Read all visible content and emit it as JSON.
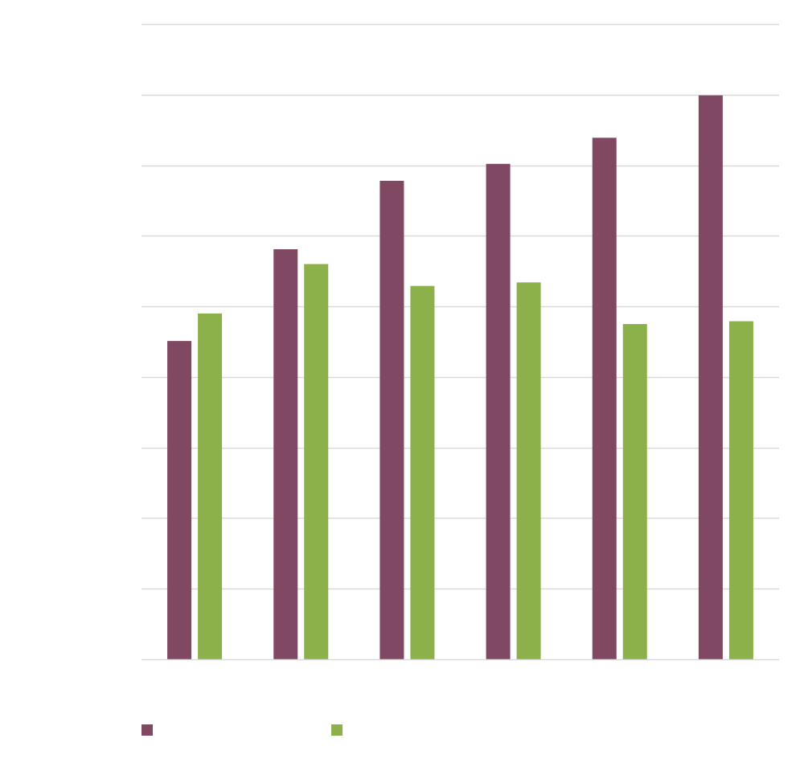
{
  "chart_data": {
    "type": "bar",
    "title": "",
    "xlabel": "",
    "ylabel": "",
    "categories": [
      "",
      "",
      "",
      "",
      "",
      ""
    ],
    "series": [
      {
        "color": "#804862",
        "values": [
          45.1,
          58.1,
          67.8,
          70.2,
          73.9,
          79.9
        ]
      },
      {
        "color": "#8db14a",
        "values": [
          49.0,
          56.0,
          52.9,
          53.4,
          47.5,
          47.9
        ]
      }
    ],
    "ylim": [
      0,
      90
    ],
    "ytick_step": 10,
    "grid": true,
    "gridline_color": "#d9d9d9",
    "axis_color": "#d9d9d9",
    "legend_position": "bottom-left"
  }
}
